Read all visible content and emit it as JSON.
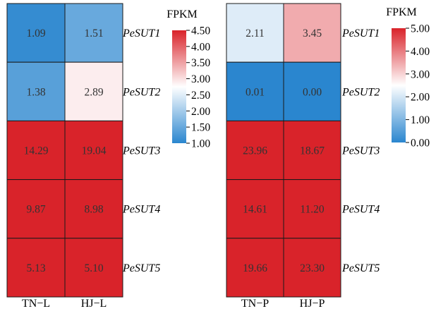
{
  "colors": {
    "low": "#2a86cf",
    "mid": "#ffffff",
    "high": "#d9232a",
    "cell_border": "#1a1a1a"
  },
  "chart_data": [
    {
      "type": "heatmap",
      "id": "leaf",
      "columns": [
        "TN−L",
        "HJ−L"
      ],
      "rows": [
        "PeSUT1",
        "PeSUT2",
        "PeSUT3",
        "PeSUT4",
        "PeSUT5"
      ],
      "values": [
        [
          1.09,
          1.51
        ],
        [
          1.38,
          2.89
        ],
        [
          14.29,
          19.04
        ],
        [
          9.87,
          8.98
        ],
        [
          5.13,
          5.1
        ]
      ],
      "value_labels": [
        [
          "1.09",
          "1.51"
        ],
        [
          "1.38",
          "2.89"
        ],
        [
          "14.29",
          "19.04"
        ],
        [
          "9.87",
          "8.98"
        ],
        [
          "5.13",
          "5.10"
        ]
      ],
      "legend": {
        "title": "FPKM",
        "min": 1.0,
        "max": 4.5,
        "ticks": [
          "1.00",
          "1.50",
          "2.00",
          "2.50",
          "3.00",
          "3.50",
          "4.00",
          "4.50"
        ]
      }
    },
    {
      "type": "heatmap",
      "id": "pod",
      "columns": [
        "TN−P",
        "HJ−P"
      ],
      "rows": [
        "PeSUT1",
        "PeSUT2",
        "PeSUT3",
        "PeSUT4",
        "PeSUT5"
      ],
      "values": [
        [
          2.11,
          3.45
        ],
        [
          0.01,
          0.0
        ],
        [
          23.96,
          18.67
        ],
        [
          14.61,
          11.2
        ],
        [
          19.66,
          23.3
        ]
      ],
      "value_labels": [
        [
          "2.11",
          "3.45"
        ],
        [
          "0.01",
          "0.00"
        ],
        [
          "23.96",
          "18.67"
        ],
        [
          "14.61",
          "11.20"
        ],
        [
          "19.66",
          "23.30"
        ]
      ],
      "legend": {
        "title": "FPKM",
        "min": 0.0,
        "max": 5.0,
        "ticks": [
          "0.00",
          "1.00",
          "2.00",
          "3.00",
          "4.00",
          "5.00"
        ]
      }
    }
  ]
}
